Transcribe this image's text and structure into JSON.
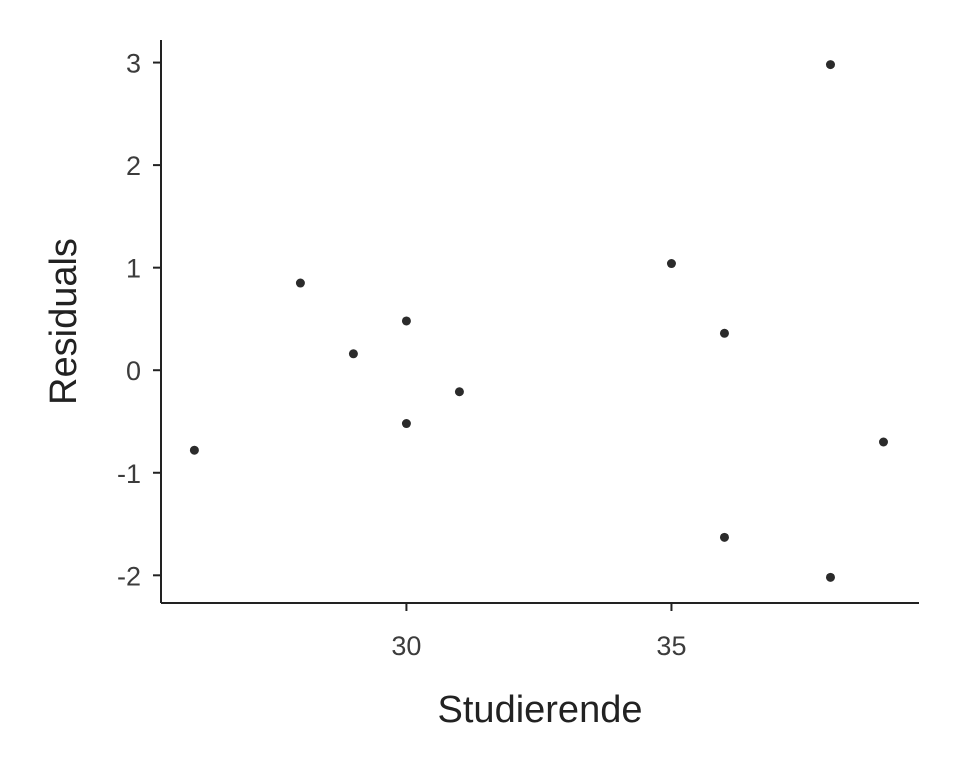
{
  "chart_data": {
    "type": "scatter",
    "title": "",
    "xlabel": "Studierende",
    "ylabel": "Residuals",
    "xlim": [
      25.37,
      39.67
    ],
    "ylim": [
      -2.27,
      3.22
    ],
    "xticks": [
      30,
      35
    ],
    "xtick_labels": [
      "30",
      "35"
    ],
    "yticks": [
      3,
      2,
      1,
      0,
      -1,
      -2
    ],
    "ytick_labels": [
      "3",
      "2",
      "1",
      "0",
      "-1",
      "-2"
    ],
    "grid": false,
    "legend": "none",
    "point_color": "#2b2b2b",
    "points": [
      {
        "x": 26,
        "y": -0.78
      },
      {
        "x": 28,
        "y": 0.85
      },
      {
        "x": 29,
        "y": 0.16
      },
      {
        "x": 30,
        "y": 0.48
      },
      {
        "x": 30,
        "y": -0.52
      },
      {
        "x": 31,
        "y": -0.21
      },
      {
        "x": 35,
        "y": 1.04
      },
      {
        "x": 36,
        "y": 0.36
      },
      {
        "x": 36,
        "y": -1.63
      },
      {
        "x": 38,
        "y": 2.98
      },
      {
        "x": 38,
        "y": -2.02
      },
      {
        "x": 39,
        "y": -0.7
      }
    ]
  }
}
